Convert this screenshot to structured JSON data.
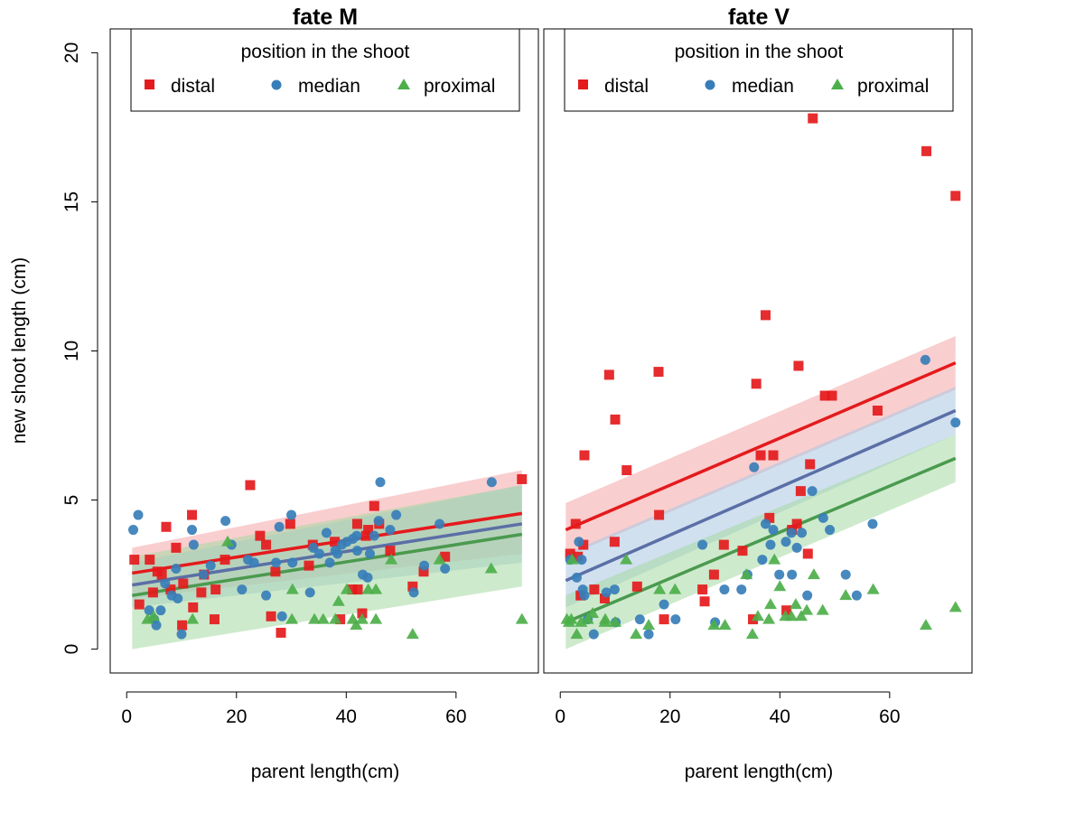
{
  "figure": {
    "ylabel": "new shoot length (cm)",
    "colors": {
      "distal": "#E41A1C",
      "median": "#377EB8",
      "proximal": "#4DAF4A",
      "distal_line": "#E41A1C",
      "median_line": "#5B6FA6",
      "proximal_line": "#4A9A4F",
      "distal_band": "#F4A6A8",
      "median_band": "#A9C6E2",
      "proximal_band": "#A6D9A2"
    }
  },
  "chart_data": [
    {
      "type": "scatter",
      "title": "fate M",
      "xlabel": "parent length(cm)",
      "ylabel": "new shoot length (cm)",
      "xlim": [
        -3,
        75
      ],
      "ylim": [
        -0.8,
        20.8
      ],
      "xticks": [
        0,
        20,
        40,
        60
      ],
      "yticks": [
        0,
        5,
        10,
        15,
        20
      ],
      "legend": {
        "title": "position in the shoot",
        "placement": "top-center",
        "entries": [
          "distal",
          "median",
          "proximal"
        ]
      },
      "series": [
        {
          "name": "distal",
          "marker": "square",
          "points": [
            [
              1.4,
              3.0
            ],
            [
              2.3,
              1.5
            ],
            [
              4.2,
              3.0
            ],
            [
              4.8,
              1.9
            ],
            [
              5.6,
              2.6
            ],
            [
              6.4,
              2.5
            ],
            [
              7.2,
              4.1
            ],
            [
              8.0,
              2.0
            ],
            [
              9.0,
              3.4
            ],
            [
              10.1,
              0.8
            ],
            [
              10.3,
              2.2
            ],
            [
              11.9,
              4.5
            ],
            [
              12.1,
              1.4
            ],
            [
              13.6,
              1.9
            ],
            [
              14.1,
              2.5
            ],
            [
              16.0,
              1.0
            ],
            [
              16.2,
              2.0
            ],
            [
              17.9,
              3.0
            ],
            [
              22.5,
              5.5
            ],
            [
              24.3,
              3.8
            ],
            [
              25.4,
              3.5
            ],
            [
              26.3,
              1.1
            ],
            [
              27.1,
              2.6
            ],
            [
              28.1,
              0.55
            ],
            [
              29.8,
              4.2
            ],
            [
              33.2,
              2.8
            ],
            [
              33.9,
              3.5
            ],
            [
              37.9,
              3.6
            ],
            [
              38.9,
              1.0
            ],
            [
              41.1,
              2.0
            ],
            [
              42.0,
              4.2
            ],
            [
              42.1,
              2.0
            ],
            [
              42.9,
              1.2
            ],
            [
              43.6,
              3.8
            ],
            [
              44.0,
              4.0
            ],
            [
              45.1,
              4.8
            ],
            [
              46.0,
              4.2
            ],
            [
              48.0,
              3.3
            ],
            [
              52.1,
              2.1
            ],
            [
              54.1,
              2.6
            ],
            [
              58.0,
              3.1
            ],
            [
              72.0,
              5.7
            ]
          ],
          "fit": {
            "x": [
              1,
              72
            ],
            "y": [
              2.55,
              4.55
            ],
            "band_lo": [
              1.7,
              3.2
            ],
            "band_hi": [
              3.4,
              6.0
            ]
          }
        },
        {
          "name": "median",
          "marker": "circle",
          "points": [
            [
              1.2,
              4.0
            ],
            [
              2.1,
              4.5
            ],
            [
              4.1,
              1.3
            ],
            [
              5.0,
              1.0
            ],
            [
              5.4,
              0.8
            ],
            [
              6.2,
              1.3
            ],
            [
              7.0,
              2.2
            ],
            [
              8.2,
              1.8
            ],
            [
              9.0,
              2.7
            ],
            [
              9.3,
              1.7
            ],
            [
              10.0,
              0.5
            ],
            [
              11.9,
              4.0
            ],
            [
              12.2,
              3.5
            ],
            [
              14.0,
              2.5
            ],
            [
              15.3,
              2.8
            ],
            [
              18.0,
              4.3
            ],
            [
              19.1,
              3.5
            ],
            [
              21.0,
              2.0
            ],
            [
              22.1,
              3.0
            ],
            [
              23.2,
              2.9
            ],
            [
              25.4,
              1.8
            ],
            [
              27.2,
              2.9
            ],
            [
              27.8,
              4.1
            ],
            [
              28.3,
              1.1
            ],
            [
              30.0,
              4.5
            ],
            [
              30.2,
              2.9
            ],
            [
              33.4,
              1.9
            ],
            [
              34.0,
              3.4
            ],
            [
              35.1,
              3.2
            ],
            [
              36.4,
              3.9
            ],
            [
              37.0,
              2.9
            ],
            [
              38.0,
              3.3
            ],
            [
              38.4,
              3.2
            ],
            [
              39.2,
              3.5
            ],
            [
              40.1,
              3.6
            ],
            [
              41.2,
              3.7
            ],
            [
              41.9,
              3.8
            ],
            [
              42.0,
              3.3
            ],
            [
              43.0,
              2.5
            ],
            [
              43.9,
              2.4
            ],
            [
              44.3,
              3.2
            ],
            [
              45.1,
              3.8
            ],
            [
              45.9,
              4.3
            ],
            [
              46.2,
              5.6
            ],
            [
              48.0,
              4.0
            ],
            [
              49.1,
              4.5
            ],
            [
              52.3,
              1.9
            ],
            [
              54.2,
              2.8
            ],
            [
              57.0,
              4.2
            ],
            [
              58.0,
              2.7
            ],
            [
              66.5,
              5.6
            ]
          ],
          "fit": {
            "x": [
              1,
              72
            ],
            "y": [
              2.15,
              4.2
            ],
            "band_lo": [
              1.4,
              2.9
            ],
            "band_hi": [
              2.9,
              5.5
            ]
          }
        },
        {
          "name": "proximal",
          "marker": "triangle",
          "points": [
            [
              3.8,
              1.0
            ],
            [
              4.9,
              1.1
            ],
            [
              12.0,
              1.0
            ],
            [
              18.4,
              3.6
            ],
            [
              30.1,
              1.0
            ],
            [
              30.2,
              2.0
            ],
            [
              34.2,
              1.0
            ],
            [
              35.8,
              1.0
            ],
            [
              38.0,
              1.0
            ],
            [
              38.6,
              1.6
            ],
            [
              40.1,
              2.0
            ],
            [
              41.2,
              1.0
            ],
            [
              41.8,
              0.8
            ],
            [
              42.9,
              1.0
            ],
            [
              44.0,
              2.0
            ],
            [
              45.4,
              2.0
            ],
            [
              45.4,
              1.0
            ],
            [
              48.2,
              3.0
            ],
            [
              52.1,
              0.5
            ],
            [
              57.0,
              3.0
            ],
            [
              66.4,
              2.7
            ],
            [
              72.0,
              1.0
            ]
          ],
          "fit": {
            "x": [
              1,
              72
            ],
            "y": [
              1.8,
              3.85
            ],
            "band_lo": [
              0.0,
              2.1
            ],
            "band_hi": [
              3.1,
              5.5
            ]
          }
        }
      ]
    },
    {
      "type": "scatter",
      "title": "fate V",
      "xlabel": "parent length(cm)",
      "ylabel": "",
      "xlim": [
        -3,
        75
      ],
      "ylim": [
        -0.8,
        20.8
      ],
      "xticks": [
        0,
        20,
        40,
        60
      ],
      "yticks": [],
      "legend": {
        "title": "position in the shoot",
        "placement": "top-center",
        "entries": [
          "distal",
          "median",
          "proximal"
        ]
      },
      "series": [
        {
          "name": "distal",
          "marker": "square",
          "points": [
            [
              1.8,
              3.2
            ],
            [
              2.8,
              4.2
            ],
            [
              3.2,
              3.1
            ],
            [
              3.7,
              1.8
            ],
            [
              4.2,
              3.5
            ],
            [
              4.4,
              6.5
            ],
            [
              6.2,
              2.0
            ],
            [
              8.1,
              1.7
            ],
            [
              8.9,
              9.2
            ],
            [
              9.9,
              3.6
            ],
            [
              10.0,
              7.7
            ],
            [
              12.1,
              6.0
            ],
            [
              14.0,
              2.1
            ],
            [
              17.9,
              9.3
            ],
            [
              18.0,
              4.5
            ],
            [
              18.9,
              1.0
            ],
            [
              25.9,
              2.0
            ],
            [
              26.3,
              1.6
            ],
            [
              28.0,
              2.5
            ],
            [
              29.8,
              3.5
            ],
            [
              33.2,
              3.3
            ],
            [
              35.1,
              1.0
            ],
            [
              35.7,
              8.9
            ],
            [
              36.5,
              6.5
            ],
            [
              37.4,
              11.2
            ],
            [
              38.1,
              4.4
            ],
            [
              38.8,
              6.5
            ],
            [
              41.2,
              1.3
            ],
            [
              42.2,
              4.0
            ],
            [
              43.1,
              4.2
            ],
            [
              43.4,
              9.5
            ],
            [
              43.8,
              5.3
            ],
            [
              45.1,
              3.2
            ],
            [
              45.5,
              6.2
            ],
            [
              46.0,
              17.8
            ],
            [
              48.2,
              8.5
            ],
            [
              49.5,
              8.5
            ],
            [
              57.8,
              8.0
            ],
            [
              66.7,
              16.7
            ],
            [
              72.0,
              15.2
            ]
          ],
          "fit": {
            "x": [
              1,
              72
            ],
            "y": [
              4.0,
              9.6
            ],
            "band_lo": [
              3.1,
              8.7
            ],
            "band_hi": [
              4.9,
              10.5
            ]
          }
        },
        {
          "name": "median",
          "marker": "circle",
          "points": [
            [
              1.8,
              3.0
            ],
            [
              3.0,
              2.4
            ],
            [
              3.4,
              3.6
            ],
            [
              3.9,
              3.0
            ],
            [
              4.1,
              2.0
            ],
            [
              4.4,
              1.8
            ],
            [
              5.0,
              1.0
            ],
            [
              6.1,
              0.5
            ],
            [
              8.4,
              1.9
            ],
            [
              9.9,
              2.0
            ],
            [
              10.1,
              0.9
            ],
            [
              14.5,
              1.0
            ],
            [
              16.1,
              0.5
            ],
            [
              18.9,
              1.5
            ],
            [
              21.0,
              1.0
            ],
            [
              25.9,
              3.5
            ],
            [
              28.2,
              0.9
            ],
            [
              29.9,
              2.0
            ],
            [
              33.0,
              2.0
            ],
            [
              34.1,
              2.5
            ],
            [
              35.3,
              6.1
            ],
            [
              36.8,
              3.0
            ],
            [
              37.4,
              4.2
            ],
            [
              38.3,
              3.5
            ],
            [
              38.8,
              4.0
            ],
            [
              39.9,
              2.5
            ],
            [
              41.1,
              3.6
            ],
            [
              42.1,
              3.9
            ],
            [
              42.2,
              2.5
            ],
            [
              43.1,
              3.4
            ],
            [
              44.0,
              3.9
            ],
            [
              45.0,
              1.8
            ],
            [
              45.9,
              5.3
            ],
            [
              47.9,
              4.4
            ],
            [
              49.1,
              4.0
            ],
            [
              52.0,
              2.5
            ],
            [
              54.0,
              1.8
            ],
            [
              56.9,
              4.2
            ],
            [
              66.5,
              9.7
            ],
            [
              72.0,
              7.6
            ]
          ],
          "fit": {
            "x": [
              1,
              72
            ],
            "y": [
              2.3,
              8.0
            ],
            "band_lo": [
              1.4,
              7.2
            ],
            "band_hi": [
              3.2,
              8.8
            ]
          }
        },
        {
          "name": "proximal",
          "marker": "triangle",
          "points": [
            [
              1.2,
              1.0
            ],
            [
              1.6,
              0.9
            ],
            [
              2.0,
              1.0
            ],
            [
              2.2,
              3.0
            ],
            [
              3.0,
              0.5
            ],
            [
              3.8,
              0.9
            ],
            [
              5.0,
              1.0
            ],
            [
              5.9,
              1.2
            ],
            [
              8.1,
              0.9
            ],
            [
              8.2,
              1.0
            ],
            [
              10.0,
              0.9
            ],
            [
              12.0,
              3.0
            ],
            [
              13.8,
              0.5
            ],
            [
              16.1,
              0.8
            ],
            [
              18.1,
              2.0
            ],
            [
              20.9,
              2.0
            ],
            [
              28.0,
              0.8
            ],
            [
              30.0,
              0.8
            ],
            [
              33.9,
              2.5
            ],
            [
              35.0,
              0.5
            ],
            [
              36.0,
              1.1
            ],
            [
              38.0,
              1.0
            ],
            [
              38.3,
              1.5
            ],
            [
              39.0,
              3.0
            ],
            [
              40.0,
              2.1
            ],
            [
              41.0,
              1.1
            ],
            [
              42.1,
              1.1
            ],
            [
              42.9,
              1.5
            ],
            [
              43.9,
              1.1
            ],
            [
              44.9,
              1.3
            ],
            [
              46.2,
              2.5
            ],
            [
              47.8,
              1.3
            ],
            [
              52.0,
              1.8
            ],
            [
              57.0,
              2.0
            ],
            [
              66.6,
              0.8
            ],
            [
              72.0,
              1.4
            ]
          ],
          "fit": {
            "x": [
              1,
              72
            ],
            "y": [
              0.9,
              6.4
            ],
            "band_lo": [
              0.0,
              5.6
            ],
            "band_hi": [
              1.8,
              7.2
            ]
          }
        }
      ]
    }
  ]
}
